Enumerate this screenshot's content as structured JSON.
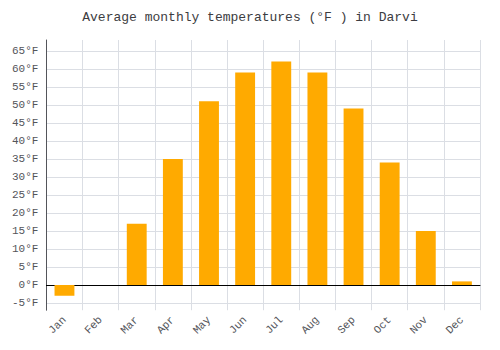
{
  "chart_data": {
    "type": "bar",
    "title": "Average monthly temperatures (°F ) in Darvi",
    "categories": [
      "Jan",
      "Feb",
      "Mar",
      "Apr",
      "May",
      "Jun",
      "Jul",
      "Aug",
      "Sep",
      "Oct",
      "Nov",
      "Dec"
    ],
    "values": [
      -3,
      0,
      17,
      35,
      51,
      59,
      62,
      59,
      49,
      34,
      15,
      1
    ],
    "color": "#FFAA00",
    "ylim": [
      -7,
      68
    ],
    "yticks": [
      {
        "value": -5,
        "label": "-5°F"
      },
      {
        "value": 0,
        "label": "0°F"
      },
      {
        "value": 5,
        "label": "5°F"
      },
      {
        "value": 10,
        "label": "10°F"
      },
      {
        "value": 15,
        "label": "15°F"
      },
      {
        "value": 20,
        "label": "20°F"
      },
      {
        "value": 25,
        "label": "25°F"
      },
      {
        "value": 30,
        "label": "30°F"
      },
      {
        "value": 35,
        "label": "35°F"
      },
      {
        "value": 40,
        "label": "40°F"
      },
      {
        "value": 45,
        "label": "45°F"
      },
      {
        "value": 50,
        "label": "50°F"
      },
      {
        "value": 55,
        "label": "55°F"
      },
      {
        "value": 60,
        "label": "60°F"
      },
      {
        "value": 65,
        "label": "65°F"
      }
    ],
    "grid": true
  }
}
